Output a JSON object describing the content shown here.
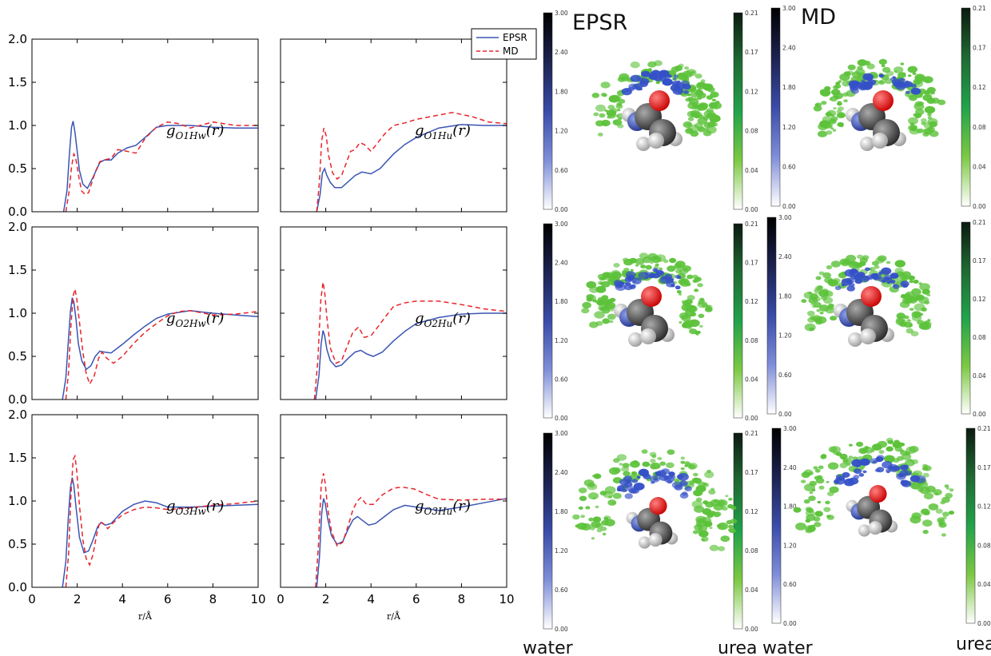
{
  "chart_data": {
    "type": "line",
    "layout": "3x2 grid of line plots",
    "x_range": [
      0,
      10
    ],
    "y_range": [
      0,
      2.0
    ],
    "x_ticks": [
      0,
      2,
      4,
      6,
      8,
      10
    ],
    "y_ticks": [
      "0.0",
      "0.5",
      "1.0",
      "1.5",
      "2.0"
    ],
    "xlabel": "r/Å",
    "legend": {
      "placement": "top-right",
      "entries": [
        "EPSR",
        "MD"
      ]
    },
    "series_styles": {
      "EPSR": {
        "color": "#3a55b4",
        "dash": "solid"
      },
      "MD": {
        "color": "#e8252a",
        "dash": "dashed"
      }
    },
    "panels": [
      {
        "label": {
          "base": "g",
          "sub": "O1Hw",
          "arg": "(r)"
        },
        "series": [
          {
            "name": "EPSR",
            "x": [
              1.4,
              1.55,
              1.65,
              1.75,
              1.82,
              1.9,
              2.0,
              2.1,
              2.25,
              2.45,
              2.7,
              3.0,
              3.2,
              3.5,
              3.8,
              4.2,
              4.6,
              5.0,
              5.5,
              6.0,
              7.0,
              8.0,
              9.0,
              10.0
            ],
            "y": [
              0.0,
              0.25,
              0.65,
              0.98,
              1.05,
              0.92,
              0.7,
              0.48,
              0.32,
              0.27,
              0.4,
              0.57,
              0.6,
              0.6,
              0.68,
              0.74,
              0.77,
              0.86,
              0.98,
              1.0,
              1.0,
              0.98,
              0.97,
              0.97
            ]
          },
          {
            "name": "MD",
            "x": [
              1.5,
              1.65,
              1.75,
              1.85,
              1.92,
              2.0,
              2.1,
              2.2,
              2.35,
              2.5,
              2.65,
              2.8,
              3.0,
              3.2,
              3.5,
              3.8,
              4.2,
              4.6,
              5.0,
              5.5,
              6.0,
              6.5,
              7.0,
              8.0,
              9.0,
              10.0
            ],
            "y": [
              0.0,
              0.25,
              0.52,
              0.67,
              0.64,
              0.52,
              0.36,
              0.24,
              0.2,
              0.22,
              0.34,
              0.46,
              0.58,
              0.6,
              0.62,
              0.72,
              0.7,
              0.68,
              0.85,
              0.98,
              1.04,
              1.02,
              0.97,
              1.04,
              1.0,
              1.0
            ]
          }
        ]
      },
      {
        "label": {
          "base": "g",
          "sub": "O1Hu",
          "arg": "(r)"
        },
        "series": [
          {
            "name": "EPSR",
            "x": [
              1.6,
              1.75,
              1.85,
              1.95,
              2.05,
              2.2,
              2.4,
              2.7,
              3.0,
              3.3,
              3.6,
              4.0,
              4.4,
              5.0,
              5.5,
              6.0,
              7.0,
              8.0,
              9.0,
              10.0
            ],
            "y": [
              0.0,
              0.2,
              0.45,
              0.5,
              0.42,
              0.34,
              0.28,
              0.28,
              0.35,
              0.42,
              0.46,
              0.44,
              0.5,
              0.67,
              0.78,
              0.86,
              0.97,
              1.01,
              1.0,
              1.0
            ]
          },
          {
            "name": "MD",
            "x": [
              1.6,
              1.72,
              1.82,
              1.92,
              2.02,
              2.12,
              2.3,
              2.5,
              2.7,
              2.9,
              3.1,
              3.3,
              3.5,
              3.7,
              4.0,
              4.3,
              4.6,
              5.0,
              5.5,
              6.0,
              7.0,
              7.6,
              8.5,
              9.2,
              10.0
            ],
            "y": [
              0.0,
              0.35,
              0.82,
              0.97,
              0.88,
              0.66,
              0.45,
              0.38,
              0.42,
              0.56,
              0.7,
              0.72,
              0.8,
              0.78,
              0.7,
              0.8,
              0.9,
              1.0,
              1.03,
              1.07,
              1.12,
              1.15,
              1.1,
              1.04,
              1.02
            ]
          }
        ]
      },
      {
        "label": {
          "base": "g",
          "sub": "O2Hw",
          "arg": "(r)"
        },
        "series": [
          {
            "name": "EPSR",
            "x": [
              1.35,
              1.5,
              1.6,
              1.7,
              1.78,
              1.85,
              1.95,
              2.05,
              2.2,
              2.4,
              2.6,
              2.8,
              3.0,
              3.2,
              3.5,
              4.0,
              4.5,
              5.0,
              5.5,
              6.0,
              7.0,
              8.0,
              9.0,
              10.0
            ],
            "y": [
              0.0,
              0.25,
              0.65,
              1.02,
              1.18,
              1.13,
              0.92,
              0.65,
              0.45,
              0.35,
              0.39,
              0.5,
              0.56,
              0.55,
              0.54,
              0.64,
              0.75,
              0.85,
              0.94,
              0.99,
              1.03,
              1.0,
              0.98,
              0.96
            ]
          },
          {
            "name": "MD",
            "x": [
              1.5,
              1.62,
              1.72,
              1.82,
              1.9,
              1.98,
              2.1,
              2.25,
              2.4,
              2.55,
              2.75,
              2.95,
              3.1,
              3.3,
              3.6,
              4.0,
              4.5,
              5.0,
              5.5,
              6.0,
              6.5,
              7.0,
              8.0,
              9.0,
              10.0
            ],
            "y": [
              0.0,
              0.32,
              0.85,
              1.2,
              1.28,
              1.17,
              0.9,
              0.55,
              0.3,
              0.18,
              0.27,
              0.48,
              0.55,
              0.48,
              0.42,
              0.5,
              0.65,
              0.78,
              0.88,
              0.97,
              1.02,
              1.03,
              0.98,
              0.99,
              1.02
            ]
          }
        ]
      },
      {
        "label": {
          "base": "g",
          "sub": "O2Hu",
          "arg": "(r)"
        },
        "series": [
          {
            "name": "EPSR",
            "x": [
              1.55,
              1.7,
              1.8,
              1.88,
              1.95,
              2.05,
              2.2,
              2.45,
              2.7,
              3.0,
              3.3,
              3.55,
              3.8,
              4.1,
              4.5,
              5.0,
              5.5,
              6.0,
              7.0,
              8.0,
              9.0,
              10.0
            ],
            "y": [
              0.0,
              0.28,
              0.65,
              0.8,
              0.74,
              0.58,
              0.45,
              0.38,
              0.4,
              0.48,
              0.55,
              0.57,
              0.53,
              0.5,
              0.55,
              0.68,
              0.79,
              0.88,
              0.95,
              0.99,
              1.0,
              1.0
            ]
          },
          {
            "name": "MD",
            "x": [
              1.5,
              1.65,
              1.78,
              1.88,
              1.95,
              2.05,
              2.2,
              2.45,
              2.7,
              2.95,
              3.2,
              3.45,
              3.7,
              4.0,
              4.3,
              4.7,
              5.0,
              5.5,
              6.0,
              7.0,
              8.0,
              9.0,
              10.0
            ],
            "y": [
              0.0,
              0.45,
              1.15,
              1.36,
              1.25,
              0.95,
              0.6,
              0.42,
              0.45,
              0.62,
              0.78,
              0.84,
              0.72,
              0.74,
              0.84,
              0.98,
              1.08,
              1.12,
              1.14,
              1.14,
              1.1,
              1.05,
              1.02
            ]
          }
        ]
      },
      {
        "label": {
          "base": "g",
          "sub": "O3Hw",
          "arg": "(r)"
        },
        "series": [
          {
            "name": "EPSR",
            "x": [
              1.35,
              1.5,
              1.6,
              1.7,
              1.78,
              1.85,
              1.95,
              2.1,
              2.3,
              2.5,
              2.7,
              2.9,
              3.05,
              3.25,
              3.5,
              4.0,
              4.5,
              5.0,
              5.5,
              6.0,
              7.0,
              8.0,
              9.0,
              10.0
            ],
            "y": [
              0.0,
              0.3,
              0.78,
              1.15,
              1.27,
              1.18,
              0.92,
              0.58,
              0.4,
              0.42,
              0.55,
              0.7,
              0.75,
              0.72,
              0.74,
              0.88,
              0.96,
              1.0,
              0.98,
              0.93,
              0.93,
              0.94,
              0.95,
              0.96
            ]
          },
          {
            "name": "MD",
            "x": [
              1.5,
              1.62,
              1.72,
              1.82,
              1.9,
              1.98,
              2.1,
              2.25,
              2.4,
              2.55,
              2.7,
              2.85,
              3.0,
              3.15,
              3.35,
              3.6,
              4.0,
              4.5,
              5.0,
              5.5,
              6.0,
              7.0,
              8.0,
              9.0,
              10.0
            ],
            "y": [
              0.0,
              0.38,
              1.05,
              1.48,
              1.52,
              1.35,
              0.95,
              0.55,
              0.33,
              0.26,
              0.38,
              0.6,
              0.76,
              0.74,
              0.68,
              0.75,
              0.84,
              0.9,
              0.93,
              0.92,
              0.9,
              0.92,
              0.95,
              0.97,
              1.0
            ]
          }
        ]
      },
      {
        "label": {
          "base": "g",
          "sub": "O3Hu",
          "arg": "(r)"
        },
        "series": [
          {
            "name": "EPSR",
            "x": [
              1.6,
              1.72,
              1.82,
              1.9,
              1.98,
              2.08,
              2.25,
              2.5,
              2.75,
              3.0,
              3.2,
              3.4,
              3.6,
              3.9,
              4.2,
              4.6,
              5.0,
              5.5,
              6.0,
              7.0,
              8.0,
              9.0,
              10.0
            ],
            "y": [
              0.0,
              0.35,
              0.85,
              1.03,
              0.97,
              0.8,
              0.6,
              0.5,
              0.53,
              0.68,
              0.78,
              0.82,
              0.78,
              0.72,
              0.74,
              0.82,
              0.9,
              0.95,
              0.93,
              0.89,
              0.93,
              0.98,
              1.03
            ]
          },
          {
            "name": "MD",
            "x": [
              1.55,
              1.68,
              1.8,
              1.9,
              1.98,
              2.08,
              2.25,
              2.5,
              2.75,
              3.0,
              3.2,
              3.4,
              3.55,
              3.8,
              4.1,
              4.5,
              5.0,
              5.4,
              5.9,
              6.5,
              7.0,
              8.0,
              9.0,
              10.0
            ],
            "y": [
              0.0,
              0.5,
              1.18,
              1.32,
              1.2,
              0.92,
              0.65,
              0.48,
              0.52,
              0.72,
              0.9,
              1.0,
              1.04,
              0.96,
              0.96,
              1.07,
              1.15,
              1.16,
              1.14,
              1.07,
              1.02,
              1.01,
              1.02,
              1.02
            ]
          }
        ]
      }
    ]
  },
  "right_panel": {
    "column_titles": [
      "EPSR",
      "MD"
    ],
    "bottom_labels": [
      "water",
      "urea",
      "water",
      "urea"
    ],
    "water_colorbar": {
      "ticks": [
        "3.00",
        "2.40",
        "1.80",
        "1.20",
        "0.60",
        "0.00"
      ],
      "gradient": [
        "#000000",
        "#1c2250",
        "#3a4ca8",
        "#7f8ed8",
        "#ffffff"
      ]
    },
    "urea_colorbar": {
      "ticks": [
        "0.21",
        "0.17",
        "0.12",
        "0.08",
        "0.04",
        "0.00"
      ],
      "gradient": [
        "#0c1a10",
        "#1f6a33",
        "#22a24a",
        "#7cc843",
        "#ffffff"
      ]
    },
    "density_colors": {
      "water": "#3550c8",
      "urea": "#5cc23a"
    },
    "molecule_colors": {
      "oxygen": "#e81c1c",
      "carbon": "#555555",
      "hydrogen": "#eeeeee",
      "nitrogen": "#3a55b4"
    }
  }
}
